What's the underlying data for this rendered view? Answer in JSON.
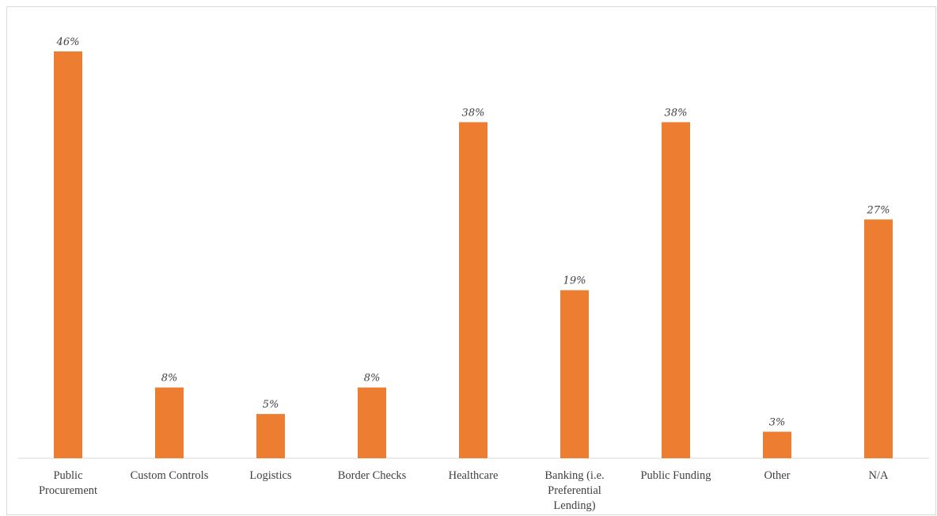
{
  "chart_data": {
    "type": "bar",
    "categories": [
      [
        "Public",
        "Procurement"
      ],
      [
        "Custom Controls"
      ],
      [
        "Logistics"
      ],
      [
        "Border Checks"
      ],
      [
        "Healthcare"
      ],
      [
        "Banking (i.e.",
        "Preferential",
        "Lending)"
      ],
      [
        "Public Funding"
      ],
      [
        "Other"
      ],
      [
        "N/A"
      ]
    ],
    "values": [
      46,
      8,
      5,
      8,
      38,
      19,
      38,
      3,
      27
    ],
    "data_labels": [
      "46%",
      "8%",
      "5%",
      "8%",
      "38%",
      "19%",
      "38%",
      "3%",
      "27%"
    ],
    "title": "",
    "xlabel": "",
    "ylabel": "",
    "unit": "%",
    "ylim": [
      0,
      46
    ],
    "grid": false,
    "legend": "none",
    "bar_color": "#ED7D31",
    "axis_color": "#d9d9d9",
    "text_color": "#404040"
  }
}
